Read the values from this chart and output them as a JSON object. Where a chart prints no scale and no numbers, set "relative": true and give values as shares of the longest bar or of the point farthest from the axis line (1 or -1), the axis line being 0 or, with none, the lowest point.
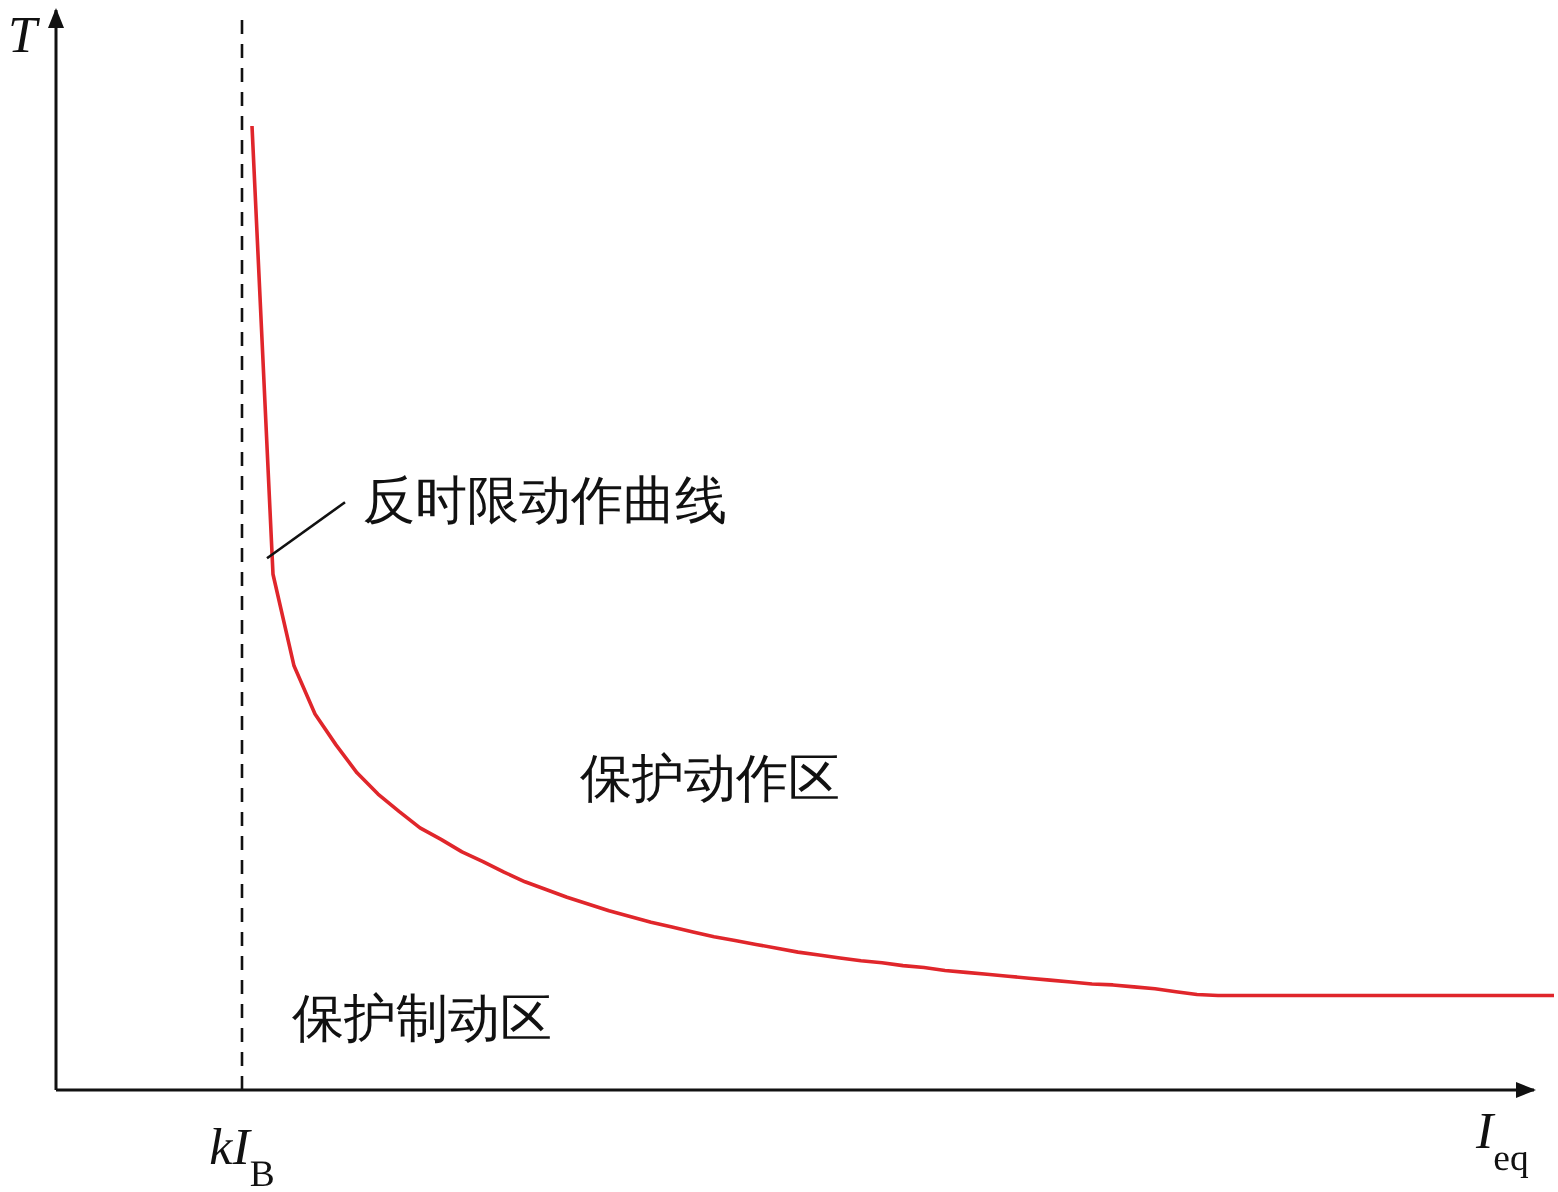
{
  "chart_data": {
    "type": "line",
    "relative": true,
    "xlabel": "*I*$_{eq}$",
    "ylabel": "*T*",
    "categories": [
      null,
      null,
      null,
      null,
      null,
      null,
      null,
      null,
      null,
      null,
      null,
      null,
      null,
      null,
      null,
      null,
      null,
      null,
      null,
      null,
      null,
      null,
      null,
      null,
      null,
      null,
      null,
      null,
      null,
      null,
      null,
      null,
      null,
      null,
      null,
      null,
      null,
      null,
      null,
      null,
      null,
      null,
      null,
      null,
      null,
      null,
      null,
      null,
      null,
      null,
      null,
      null,
      null,
      null,
      null,
      null,
      null,
      null,
      null,
      null,
      null,
      null,
      null
    ],
    "series": [
      {
        "color": "#e0262b",
        "values": [
          1,
          0.535,
          0.44,
          0.39,
          0.358,
          0.329,
          0.307,
          0.289,
          0.272,
          0.26,
          0.247,
          0.237,
          0.226,
          0.216,
          0.208,
          0.2,
          0.193,
          0.186,
          0.18,
          0.174,
          0.169,
          0.164,
          0.159,
          0.155,
          0.151,
          0.147,
          0.143,
          0.14,
          0.137,
          0.134,
          0.132,
          0.129,
          0.127,
          0.124,
          0.122,
          0.12,
          0.118,
          0.116,
          0.114,
          0.112,
          0.11,
          0.109,
          0.107,
          0.105,
          0.102,
          0.099,
          0.098,
          0.098,
          0.098,
          0.098,
          0.098,
          0.098,
          0.098,
          0.098,
          0.098,
          0.098,
          0.098,
          0.098,
          0.098,
          0.098,
          0.098,
          0.098,
          0.098
        ]
      }
    ],
    "annotations": [
      "反时限动作曲线",
      "*kI*$_{B}$",
      "保护动作区",
      "保护制动区"
    ]
  }
}
